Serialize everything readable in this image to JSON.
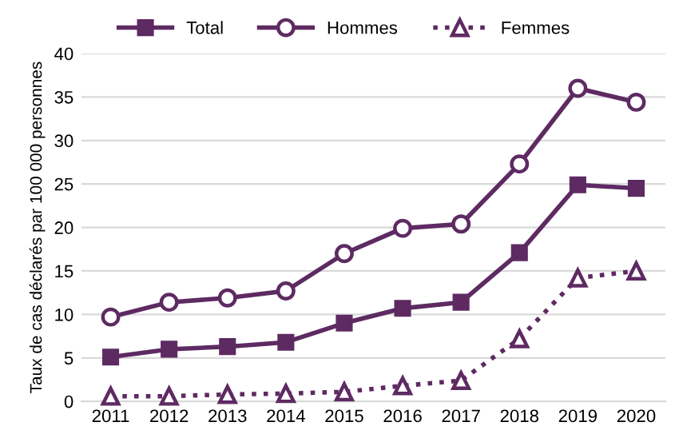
{
  "chart_data": {
    "type": "line",
    "ylabel": "Taux de cas déclarés par 100 000 personnes",
    "categories": [
      "2011",
      "2012",
      "2013",
      "2014",
      "2015",
      "2016",
      "2017",
      "2018",
      "2019",
      "2020"
    ],
    "series": [
      {
        "name": "Total",
        "color": "#5e2a62",
        "marker": "square",
        "line_style": "solid",
        "values": [
          5.1,
          6.0,
          6.3,
          6.8,
          9.0,
          10.7,
          11.4,
          17.1,
          24.9,
          24.5
        ]
      },
      {
        "name": "Hommes",
        "color": "#5e2a62",
        "marker": "circle",
        "line_style": "solid",
        "values": [
          9.7,
          11.4,
          11.9,
          12.7,
          17.0,
          19.9,
          20.4,
          27.3,
          36.0,
          34.4
        ]
      },
      {
        "name": "Femmes",
        "color": "#5e2a62",
        "marker": "triangle",
        "line_style": "dotted",
        "values": [
          0.6,
          0.6,
          0.8,
          0.9,
          1.1,
          1.8,
          2.4,
          7.2,
          14.2,
          15.0
        ]
      }
    ],
    "ylim": [
      0,
      40
    ],
    "yticks": [
      0,
      5,
      10,
      15,
      20,
      25,
      30,
      35,
      40
    ],
    "grid": "y",
    "legend": "top"
  }
}
